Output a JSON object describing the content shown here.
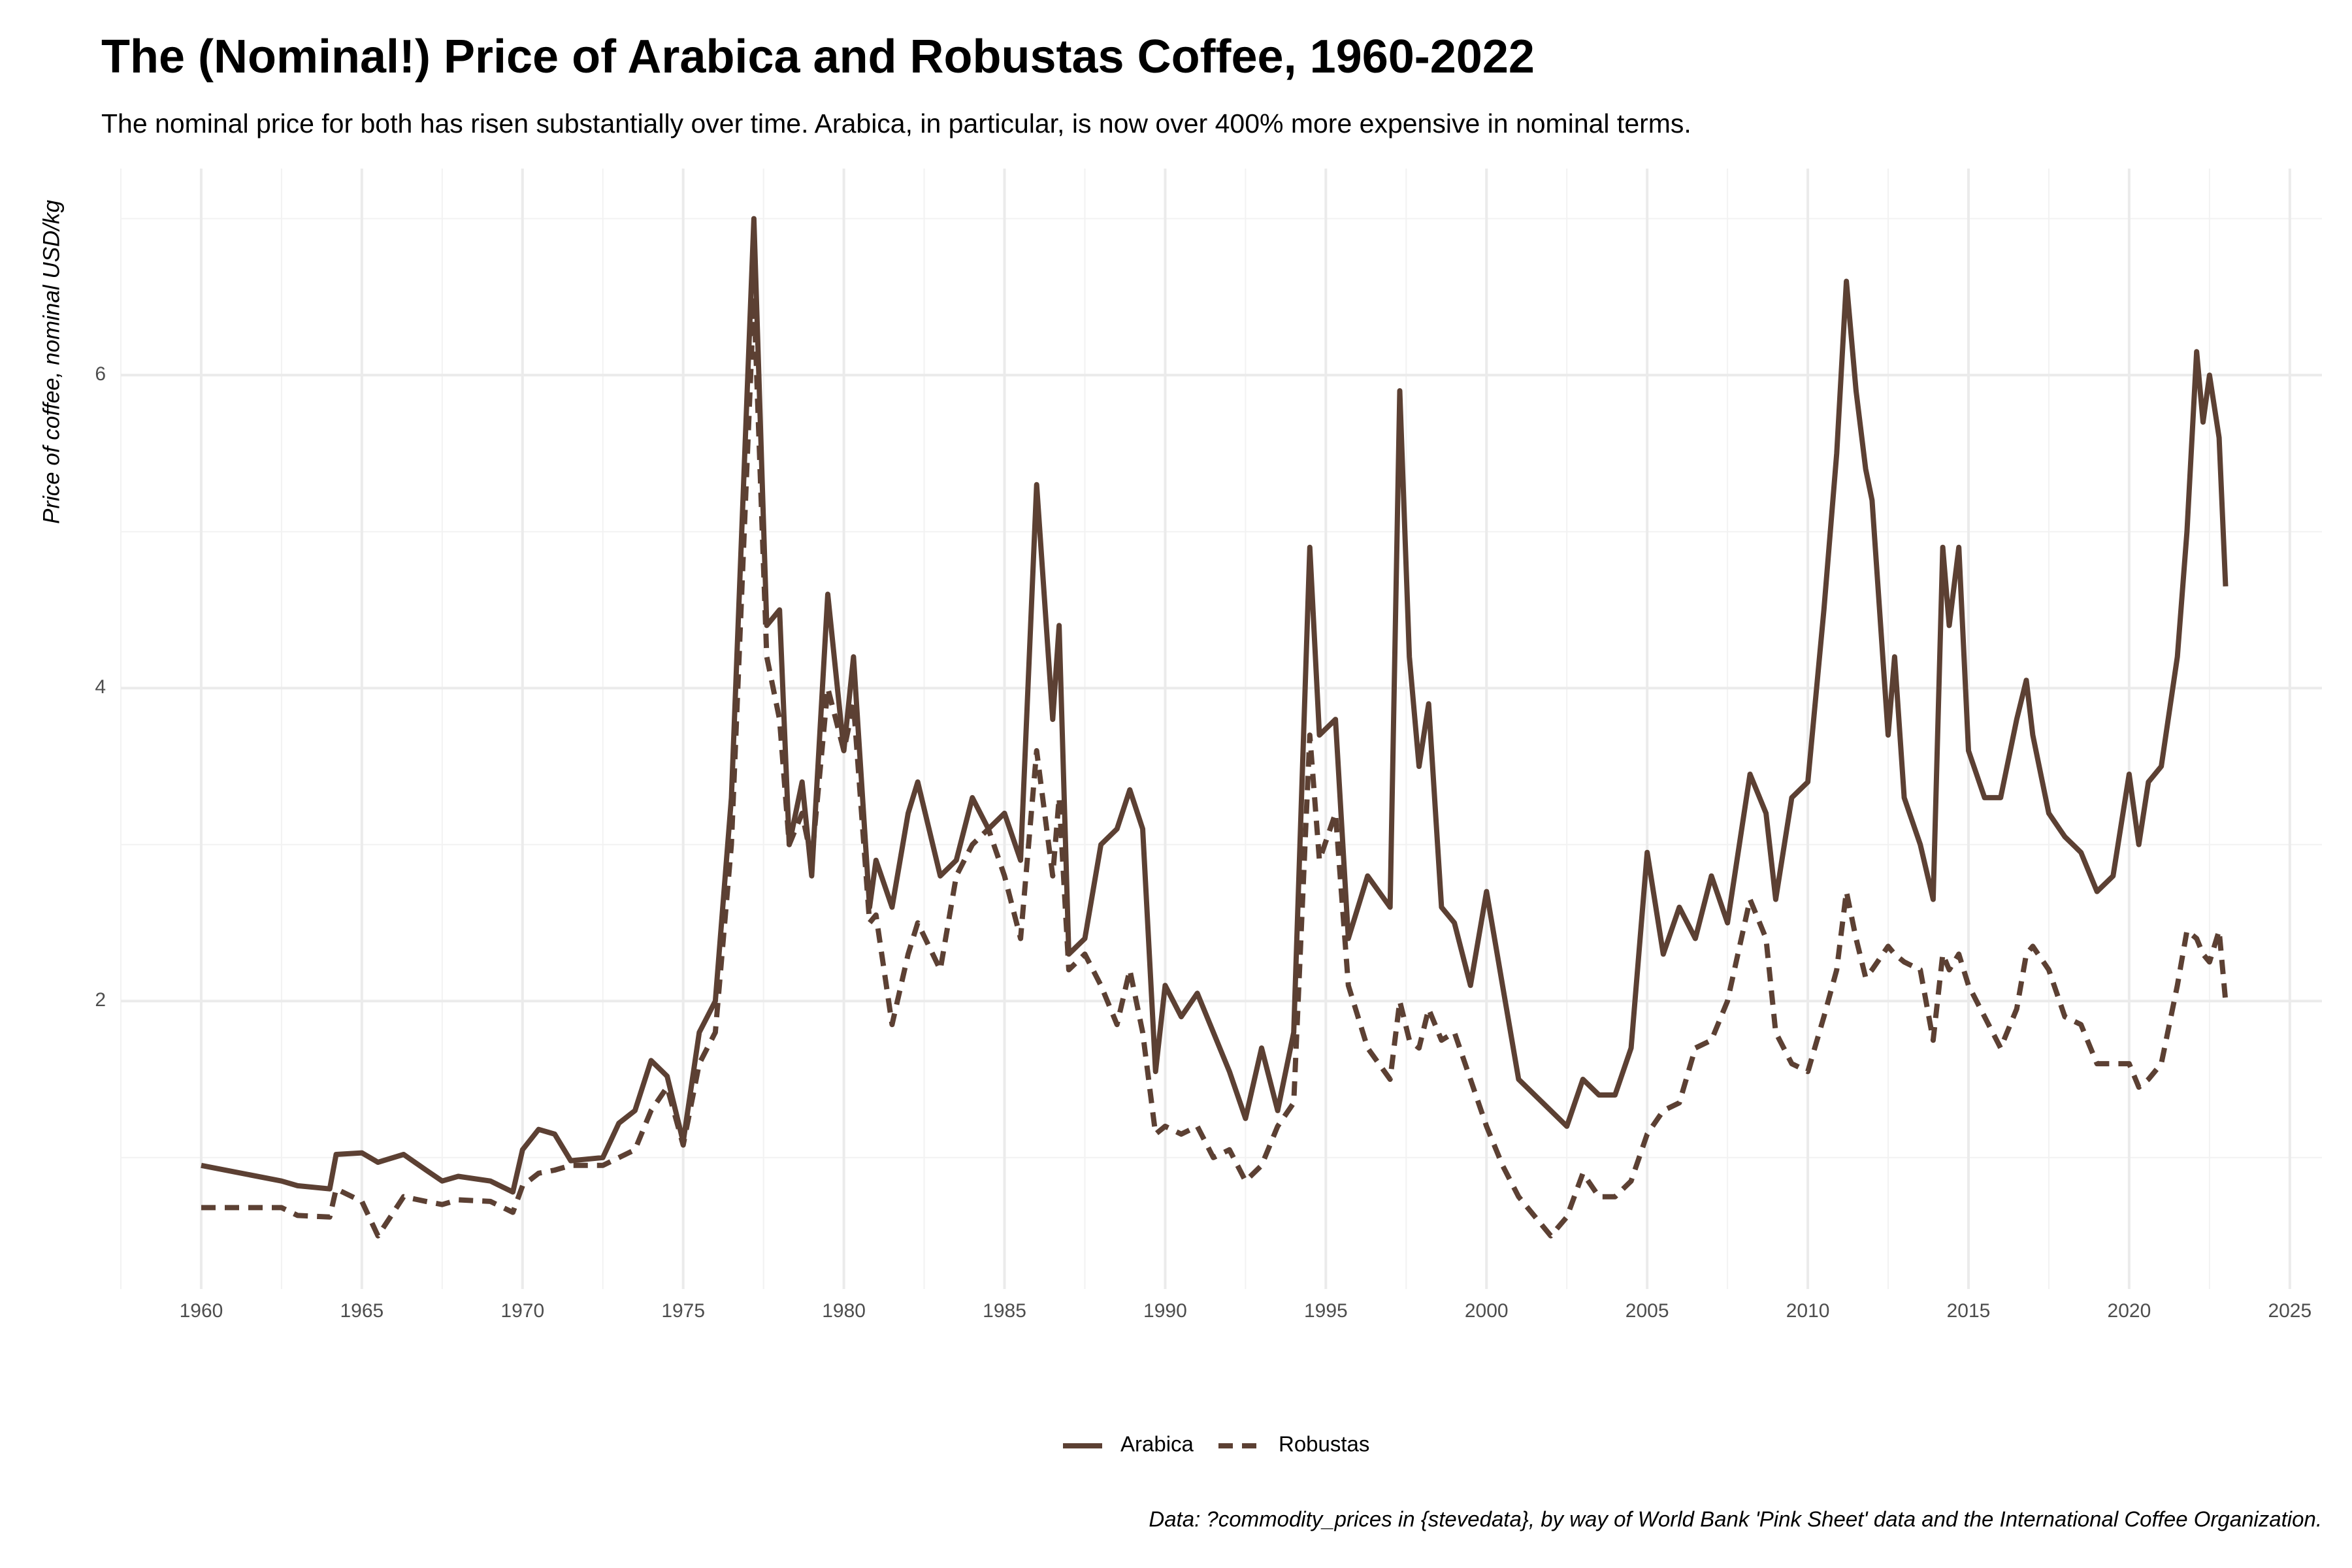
{
  "chart_data": {
    "type": "line",
    "title": "The (Nominal!) Price of Arabica and Robustas Coffee, 1960-2022",
    "subtitle": "The nominal price for both has risen substantially over time. Arabica, in particular, is now over 400% more expensive in nominal terms.",
    "ylabel": "Price of coffee, nominal USD/kg",
    "caption": "Data: ?commodity_prices in {stevedata}, by way of World Bank 'Pink Sheet' data and the International Coffee Organization.",
    "x": [
      1960,
      1962.5,
      1963,
      1964,
      1964.2,
      1965,
      1965.5,
      1966.3,
      1967,
      1967.5,
      1968,
      1969,
      1969.7,
      1970,
      1970.5,
      1971,
      1971.5,
      1972.5,
      1973,
      1973.5,
      1974,
      1974.5,
      1975,
      1975.5,
      1976,
      1976.5,
      1977.2,
      1977.6,
      1978,
      1978.3,
      1978.7,
      1979,
      1979.5,
      1980,
      1980.3,
      1980.8,
      1981,
      1981.5,
      1982,
      1982.3,
      1983,
      1983.5,
      1984,
      1984.5,
      1985,
      1985.5,
      1986,
      1986.5,
      1986.7,
      1987,
      1987.5,
      1988,
      1988.5,
      1988.9,
      1989.3,
      1989.7,
      1990,
      1990.5,
      1991,
      1991.5,
      1992,
      1992.5,
      1993,
      1993.5,
      1994,
      1994.5,
      1994.8,
      1995.3,
      1995.7,
      1996.3,
      1997,
      1997.3,
      1997.6,
      1997.9,
      1998.2,
      1998.6,
      1999,
      1999.5,
      2000,
      2000.5,
      2001,
      2002,
      2002.5,
      2003,
      2003.5,
      2004,
      2004.5,
      2005,
      2005.5,
      2006,
      2006.5,
      2007,
      2007.5,
      2008.2,
      2008.7,
      2009,
      2009.5,
      2010,
      2010.5,
      2010.9,
      2011.2,
      2011.5,
      2011.8,
      2012,
      2012.5,
      2012.7,
      2013,
      2013.5,
      2013.9,
      2014.2,
      2014.4,
      2014.7,
      2015,
      2015.5,
      2016,
      2016.5,
      2016.8,
      2017,
      2017.5,
      2018,
      2018.5,
      2019,
      2019.5,
      2020,
      2020.3,
      2020.6,
      2021,
      2021.5,
      2021.8,
      2022.1,
      2022.3,
      2022.5,
      2022.8,
      2023
    ],
    "series": [
      {
        "name": "Arabica",
        "color": "#5c4033",
        "linetype": "solid",
        "values": [
          0.95,
          0.85,
          0.82,
          0.8,
          1.02,
          1.03,
          0.97,
          1.02,
          0.92,
          0.85,
          0.88,
          0.85,
          0.78,
          1.05,
          1.18,
          1.15,
          0.98,
          1.0,
          1.22,
          1.3,
          1.62,
          1.52,
          1.1,
          1.8,
          2.0,
          3.3,
          7.0,
          4.4,
          4.5,
          3.0,
          3.4,
          2.8,
          4.6,
          3.6,
          4.2,
          2.6,
          2.9,
          2.6,
          3.2,
          3.4,
          2.8,
          2.9,
          3.3,
          3.1,
          3.2,
          2.9,
          5.3,
          3.8,
          4.4,
          2.3,
          2.4,
          3.0,
          3.1,
          3.35,
          3.1,
          1.55,
          2.1,
          1.9,
          2.05,
          1.8,
          1.55,
          1.25,
          1.7,
          1.3,
          1.8,
          4.9,
          3.7,
          3.8,
          2.4,
          2.8,
          2.6,
          5.9,
          4.2,
          3.5,
          3.9,
          2.6,
          2.5,
          2.1,
          2.7,
          2.1,
          1.5,
          1.3,
          1.2,
          1.5,
          1.4,
          1.4,
          1.7,
          2.95,
          2.3,
          2.6,
          2.4,
          2.8,
          2.5,
          3.45,
          3.2,
          2.65,
          3.3,
          3.4,
          4.5,
          5.5,
          6.6,
          5.9,
          5.4,
          5.2,
          3.7,
          4.2,
          3.3,
          3.0,
          2.65,
          4.9,
          4.4,
          4.9,
          3.6,
          3.3,
          3.3,
          3.8,
          4.05,
          3.7,
          3.2,
          3.05,
          2.95,
          2.7,
          2.8,
          3.45,
          3.0,
          3.4,
          3.5,
          4.2,
          5.0,
          6.15,
          5.7,
          6.0,
          5.6,
          4.65
        ]
      },
      {
        "name": "Robustas",
        "color": "#5c4033",
        "linetype": "dashed",
        "values": [
          0.68,
          0.68,
          0.63,
          0.62,
          0.8,
          0.72,
          0.5,
          0.75,
          0.72,
          0.7,
          0.73,
          0.72,
          0.65,
          0.82,
          0.9,
          0.92,
          0.95,
          0.95,
          1.0,
          1.05,
          1.3,
          1.45,
          1.08,
          1.6,
          1.8,
          3.0,
          6.5,
          4.2,
          3.8,
          3.0,
          3.2,
          2.9,
          4.0,
          3.6,
          3.9,
          2.5,
          2.55,
          1.85,
          2.3,
          2.5,
          2.2,
          2.8,
          3.0,
          3.1,
          2.8,
          2.4,
          3.6,
          2.8,
          3.3,
          2.2,
          2.3,
          2.1,
          1.85,
          2.2,
          1.8,
          1.15,
          1.2,
          1.15,
          1.2,
          1.0,
          1.05,
          0.85,
          0.95,
          1.2,
          1.35,
          3.7,
          2.9,
          3.2,
          2.1,
          1.7,
          1.5,
          2.0,
          1.75,
          1.7,
          1.95,
          1.75,
          1.8,
          1.5,
          1.2,
          0.95,
          0.75,
          0.5,
          0.62,
          0.9,
          0.75,
          0.75,
          0.85,
          1.15,
          1.3,
          1.35,
          1.7,
          1.75,
          2.0,
          2.65,
          2.4,
          1.8,
          1.6,
          1.55,
          1.9,
          2.2,
          2.7,
          2.4,
          2.15,
          2.2,
          2.35,
          2.3,
          2.25,
          2.2,
          1.75,
          2.3,
          2.2,
          2.3,
          2.1,
          1.9,
          1.7,
          1.95,
          2.3,
          2.35,
          2.2,
          1.9,
          1.85,
          1.6,
          1.6,
          1.6,
          1.45,
          1.5,
          1.6,
          2.1,
          2.45,
          2.4,
          2.3,
          2.25,
          2.45,
          2.0
        ]
      }
    ],
    "xlim": [
      1957.5,
      2026.0
    ],
    "xticks": [
      1960,
      1965,
      1970,
      1975,
      1980,
      1985,
      1990,
      1995,
      2000,
      2005,
      2010,
      2015,
      2020,
      2025
    ],
    "xminor": [
      1957.5,
      1962.5,
      1967.5,
      1972.5,
      1977.5,
      1982.5,
      1987.5,
      1992.5,
      1997.5,
      2002.5,
      2007.5,
      2012.5,
      2017.5,
      2022.5
    ],
    "ylim": [
      0.16,
      7.32
    ],
    "yticks": [
      2,
      4,
      6
    ],
    "yminor": [
      1,
      3,
      5,
      7
    ],
    "grid": true,
    "legend": "bottom"
  }
}
